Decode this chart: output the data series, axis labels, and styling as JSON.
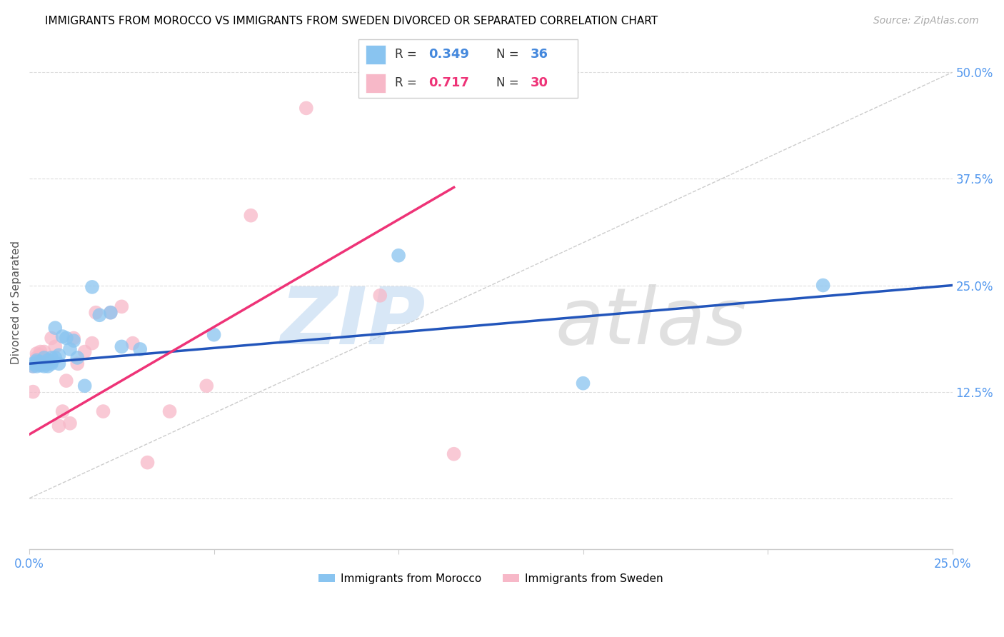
{
  "title": "IMMIGRANTS FROM MOROCCO VS IMMIGRANTS FROM SWEDEN DIVORCED OR SEPARATED CORRELATION CHART",
  "source": "Source: ZipAtlas.com",
  "tick_color": "#5599ee",
  "ylabel": "Divorced or Separated",
  "xlim": [
    0.0,
    0.25
  ],
  "ylim": [
    -0.06,
    0.52
  ],
  "x_ticks": [
    0.0,
    0.05,
    0.1,
    0.15,
    0.2,
    0.25
  ],
  "y_ticks": [
    0.0,
    0.125,
    0.25,
    0.375,
    0.5
  ],
  "color_morocco": "#89c4f0",
  "color_sweden": "#f7b8c8",
  "color_morocco_dark": "#4488dd",
  "color_sweden_dark": "#ee3377",
  "diagonal_color": "#cccccc",
  "blue_line_color": "#2255bb",
  "pink_line_color": "#ee3377",
  "morocco_x": [
    0.001,
    0.001,
    0.002,
    0.002,
    0.002,
    0.003,
    0.003,
    0.003,
    0.004,
    0.004,
    0.004,
    0.005,
    0.005,
    0.005,
    0.006,
    0.006,
    0.006,
    0.007,
    0.007,
    0.008,
    0.008,
    0.009,
    0.01,
    0.011,
    0.012,
    0.013,
    0.015,
    0.017,
    0.019,
    0.022,
    0.025,
    0.03,
    0.05,
    0.1,
    0.15,
    0.215
  ],
  "morocco_y": [
    0.155,
    0.158,
    0.162,
    0.155,
    0.16,
    0.16,
    0.156,
    0.158,
    0.165,
    0.158,
    0.155,
    0.162,
    0.158,
    0.155,
    0.165,
    0.16,
    0.158,
    0.2,
    0.165,
    0.168,
    0.158,
    0.19,
    0.188,
    0.175,
    0.185,
    0.165,
    0.132,
    0.248,
    0.215,
    0.218,
    0.178,
    0.175,
    0.192,
    0.285,
    0.135,
    0.25
  ],
  "sweden_x": [
    0.001,
    0.001,
    0.002,
    0.002,
    0.003,
    0.003,
    0.004,
    0.005,
    0.006,
    0.007,
    0.008,
    0.009,
    0.01,
    0.011,
    0.012,
    0.013,
    0.015,
    0.017,
    0.018,
    0.02,
    0.022,
    0.025,
    0.028,
    0.032,
    0.038,
    0.048,
    0.06,
    0.075,
    0.095,
    0.115
  ],
  "sweden_y": [
    0.125,
    0.155,
    0.165,
    0.17,
    0.172,
    0.168,
    0.172,
    0.162,
    0.188,
    0.178,
    0.085,
    0.102,
    0.138,
    0.088,
    0.188,
    0.158,
    0.172,
    0.182,
    0.218,
    0.102,
    0.218,
    0.225,
    0.182,
    0.042,
    0.102,
    0.132,
    0.332,
    0.458,
    0.238,
    0.052
  ],
  "blue_line_x0": 0.0,
  "blue_line_y0": 0.158,
  "blue_line_x1": 0.25,
  "blue_line_y1": 0.25,
  "pink_line_x0": 0.0,
  "pink_line_y0": 0.075,
  "pink_line_x1": 0.115,
  "pink_line_y1": 0.365
}
